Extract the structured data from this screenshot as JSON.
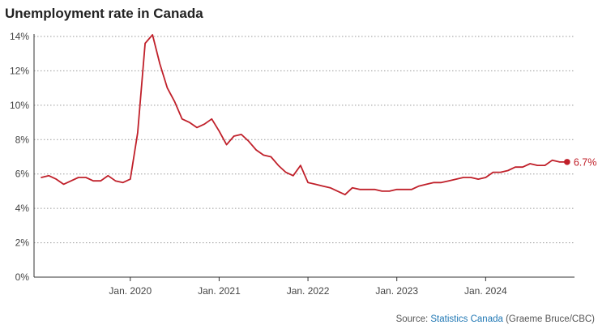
{
  "chart_data": {
    "type": "line",
    "title": "Unemployment rate in Canada",
    "ylim": [
      0,
      14
    ],
    "yticks": [
      0,
      2,
      4,
      6,
      8,
      10,
      12,
      14
    ],
    "ytick_labels": [
      "0%",
      "2%",
      "4%",
      "6%",
      "8%",
      "10%",
      "12%",
      "14%"
    ],
    "xticks": [
      {
        "label": "Jan. 2020",
        "date": "2020-01"
      },
      {
        "label": "Jan. 2021",
        "date": "2021-01"
      },
      {
        "label": "Jan. 2022",
        "date": "2022-01"
      },
      {
        "label": "Jan. 2023",
        "date": "2023-01"
      },
      {
        "label": "Jan. 2024",
        "date": "2024-01"
      }
    ],
    "x_start": "2018-12",
    "x_end": "2025-01",
    "grid": true,
    "line_color": "#c0202a",
    "series": [
      {
        "x": [
          "2019-01",
          "2019-02",
          "2019-03",
          "2019-04",
          "2019-05",
          "2019-06",
          "2019-07",
          "2019-08",
          "2019-09",
          "2019-10",
          "2019-11",
          "2019-12",
          "2020-01",
          "2020-02",
          "2020-03",
          "2020-04",
          "2020-05",
          "2020-06",
          "2020-07",
          "2020-08",
          "2020-09",
          "2020-10",
          "2020-11",
          "2020-12",
          "2021-01",
          "2021-02",
          "2021-03",
          "2021-04",
          "2021-05",
          "2021-06",
          "2021-07",
          "2021-08",
          "2021-09",
          "2021-10",
          "2021-11",
          "2021-12",
          "2022-01",
          "2022-02",
          "2022-03",
          "2022-04",
          "2022-05",
          "2022-06",
          "2022-07",
          "2022-08",
          "2022-09",
          "2022-10",
          "2022-11",
          "2022-12",
          "2023-01",
          "2023-02",
          "2023-03",
          "2023-04",
          "2023-05",
          "2023-06",
          "2023-07",
          "2023-08",
          "2023-09",
          "2023-10",
          "2023-11",
          "2023-12",
          "2024-01",
          "2024-02",
          "2024-03",
          "2024-04",
          "2024-05",
          "2024-06",
          "2024-07",
          "2024-08",
          "2024-09",
          "2024-10",
          "2024-11",
          "2024-12"
        ],
        "values": [
          5.8,
          5.9,
          5.7,
          5.4,
          5.6,
          5.8,
          5.8,
          5.6,
          5.6,
          5.9,
          5.6,
          5.5,
          5.7,
          8.4,
          13.6,
          14.1,
          12.4,
          11.0,
          10.2,
          9.2,
          9.0,
          8.7,
          8.9,
          9.2,
          8.5,
          7.7,
          8.2,
          8.3,
          7.9,
          7.4,
          7.1,
          7.0,
          6.5,
          6.1,
          5.9,
          6.5,
          5.5,
          5.4,
          5.3,
          5.2,
          5.0,
          4.8,
          5.2,
          5.1,
          5.1,
          5.1,
          5.0,
          5.0,
          5.1,
          5.1,
          5.1,
          5.3,
          5.4,
          5.5,
          5.5,
          5.6,
          5.7,
          5.8,
          5.8,
          5.7,
          5.8,
          6.1,
          6.1,
          6.2,
          6.4,
          6.4,
          6.6,
          6.5,
          6.5,
          6.8,
          6.7,
          6.7
        ]
      }
    ],
    "end_label": "6.7%"
  },
  "source": {
    "prefix": "Source: ",
    "link_text": "Statistics Canada",
    "suffix": " (Graeme Bruce/CBC)"
  }
}
